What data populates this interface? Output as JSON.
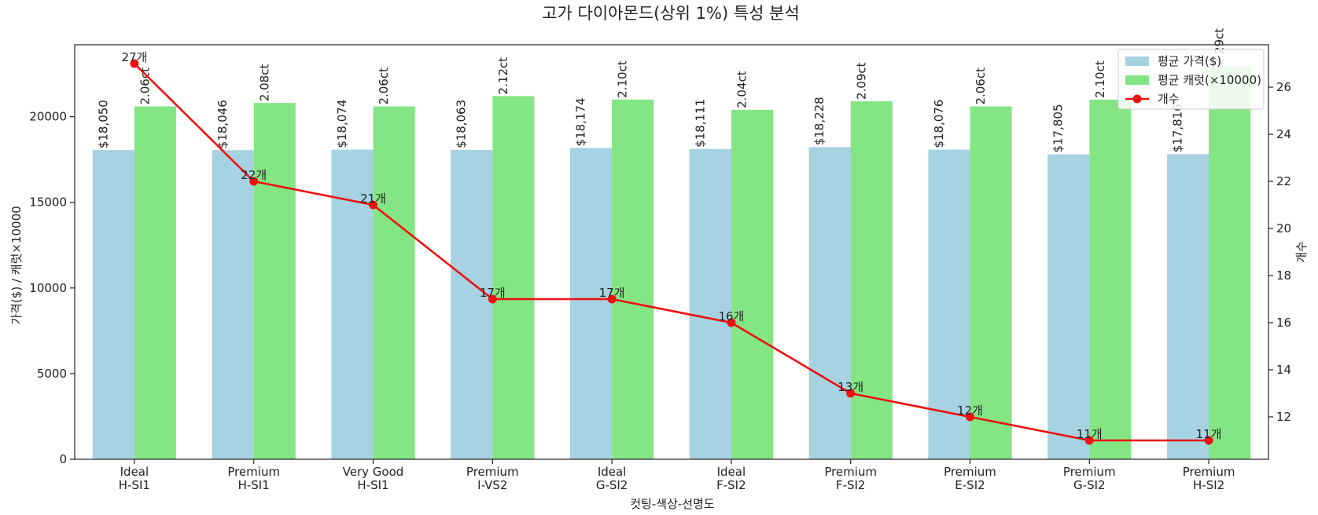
{
  "chart_data": {
    "type": "bar",
    "title": "고가 다이아몬드(상위 1%) 특성 분석",
    "xlabel": "컷팅-색상-선명도",
    "ylabel": "가격($) / 캐럿×10000",
    "y2label": "개수",
    "categories": [
      [
        "Ideal",
        "H-SI1"
      ],
      [
        "Premium",
        "H-SI1"
      ],
      [
        "Very Good",
        "H-SI1"
      ],
      [
        "Premium",
        "I-VS2"
      ],
      [
        "Ideal",
        "G-SI2"
      ],
      [
        "Ideal",
        "F-SI2"
      ],
      [
        "Premium",
        "F-SI2"
      ],
      [
        "Premium",
        "E-SI2"
      ],
      [
        "Premium",
        "G-SI2"
      ],
      [
        "Premium",
        "H-SI2"
      ]
    ],
    "ylim": [
      0,
      24200
    ],
    "y_ticks": [
      0,
      5000,
      10000,
      15000,
      20000
    ],
    "y2lim": [
      10.2,
      27.8
    ],
    "y2_ticks": [
      12,
      14,
      16,
      18,
      20,
      22,
      24,
      26
    ],
    "series": [
      {
        "name": "평균 가격($)",
        "kind": "bar",
        "color": "#a6d2e1",
        "values": [
          18050,
          18046,
          18074,
          18063,
          18174,
          18111,
          18228,
          18076,
          17805,
          17816
        ],
        "labels": [
          "$18,050",
          "$18,046",
          "$18,074",
          "$18,063",
          "$18,174",
          "$18,111",
          "$18,228",
          "$18,076",
          "$17,805",
          "$17,816"
        ]
      },
      {
        "name": "평균 캐럿(×10000)",
        "kind": "bar",
        "color": "#84e584",
        "values": [
          20600,
          20800,
          20600,
          21200,
          21000,
          20400,
          20900,
          20600,
          21000,
          22900
        ],
        "labels": [
          "2.06ct",
          "2.08ct",
          "2.06ct",
          "2.12ct",
          "2.10ct",
          "2.04ct",
          "2.09ct",
          "2.06ct",
          "2.10ct",
          "2.29ct"
        ]
      },
      {
        "name": "개수",
        "kind": "line",
        "axis": "right",
        "color": "#ee1111",
        "values": [
          27,
          22,
          21,
          17,
          17,
          16,
          13,
          12,
          11,
          11
        ],
        "labels": [
          "27개",
          "22개",
          "21개",
          "17개",
          "17개",
          "16개",
          "13개",
          "12개",
          "11개",
          "11개"
        ]
      }
    ],
    "legend": "top-right",
    "grid": false
  }
}
